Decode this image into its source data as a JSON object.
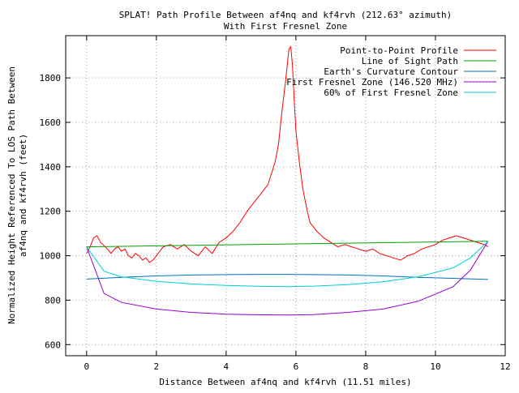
{
  "chart_data": {
    "type": "line",
    "title": "SPLAT! Path Profile Between af4nq and kf4rvh (212.63° azimuth)",
    "subtitle": "With First Fresnel Zone",
    "xlabel": "Distance Between af4nq and kf4rvh (11.51 miles)",
    "ylabel_line1": "Normalized Height Referenced To LOS Path Between",
    "ylabel_line2": "af4nq and kf4rvh (feet)",
    "xlim": [
      -0.6,
      12
    ],
    "ylim": [
      550,
      1990
    ],
    "xticks": [
      0,
      2,
      4,
      6,
      8,
      10,
      12
    ],
    "yticks": [
      600,
      800,
      1000,
      1200,
      1400,
      1600,
      1800
    ],
    "grid": true,
    "legend_position": "top-right",
    "series": [
      {
        "name": "Point-to-Point Profile",
        "color": "#ff0000",
        "x": [
          0,
          0.1,
          0.2,
          0.3,
          0.4,
          0.5,
          0.6,
          0.7,
          0.8,
          0.9,
          1.0,
          1.1,
          1.2,
          1.3,
          1.4,
          1.5,
          1.6,
          1.7,
          1.8,
          1.9,
          2.0,
          2.2,
          2.4,
          2.6,
          2.8,
          3.0,
          3.2,
          3.4,
          3.6,
          3.8,
          4.0,
          4.2,
          4.4,
          4.6,
          4.8,
          5.0,
          5.2,
          5.4,
          5.5,
          5.6,
          5.7,
          5.8,
          5.85,
          5.9,
          5.95,
          6.0,
          6.1,
          6.2,
          6.3,
          6.4,
          6.6,
          6.8,
          7.0,
          7.2,
          7.4,
          7.6,
          7.8,
          8.0,
          8.2,
          8.4,
          8.6,
          8.8,
          9.0,
          9.2,
          9.4,
          9.6,
          9.8,
          10.0,
          10.2,
          10.4,
          10.6,
          10.8,
          11.0,
          11.2,
          11.4,
          11.51
        ],
        "values": [
          1010,
          1040,
          1080,
          1090,
          1060,
          1045,
          1030,
          1010,
          1030,
          1040,
          1020,
          1030,
          1000,
          990,
          1010,
          1000,
          980,
          990,
          970,
          980,
          1000,
          1040,
          1050,
          1030,
          1050,
          1020,
          1000,
          1040,
          1010,
          1060,
          1080,
          1110,
          1150,
          1200,
          1240,
          1280,
          1320,
          1420,
          1500,
          1650,
          1780,
          1930,
          1940,
          1860,
          1700,
          1560,
          1420,
          1300,
          1220,
          1150,
          1110,
          1080,
          1060,
          1040,
          1050,
          1040,
          1030,
          1020,
          1030,
          1010,
          1000,
          990,
          980,
          1000,
          1010,
          1030,
          1040,
          1050,
          1070,
          1080,
          1090,
          1080,
          1070,
          1060,
          1050,
          1040
        ]
      },
      {
        "name": "Line of Sight Path",
        "color": "#00a000",
        "x": [
          0,
          11.51
        ],
        "values": [
          1040,
          1065
        ]
      },
      {
        "name": "Earth's Curvature Contour",
        "color": "#0070c0",
        "x": [
          0,
          1,
          2,
          3,
          4,
          5,
          5.75,
          6.5,
          7.5,
          8.5,
          9.5,
          10.5,
          11.51
        ],
        "values": [
          895,
          903,
          909,
          913,
          915,
          916,
          916,
          915,
          913,
          909,
          903,
          898,
          893
        ]
      },
      {
        "name": "First Fresnel Zone (146.520 MHz)",
        "color": "#9400d3",
        "x": [
          0,
          0.5,
          1,
          2,
          3,
          4,
          5,
          5.75,
          6.5,
          7.5,
          8.5,
          9.5,
          10.5,
          11,
          11.51
        ],
        "values": [
          1040,
          830,
          790,
          760,
          745,
          737,
          734,
          733,
          735,
          745,
          760,
          795,
          860,
          935,
          1065
        ]
      },
      {
        "name": "60% of First Fresnel Zone",
        "color": "#00d0d0",
        "x": [
          0,
          0.5,
          1,
          2,
          3,
          4,
          5,
          5.75,
          6.5,
          7.5,
          8.5,
          9.5,
          10.5,
          11,
          11.51
        ],
        "values": [
          1040,
          930,
          905,
          885,
          873,
          866,
          862,
          861,
          863,
          870,
          883,
          905,
          945,
          990,
          1065
        ]
      }
    ]
  }
}
